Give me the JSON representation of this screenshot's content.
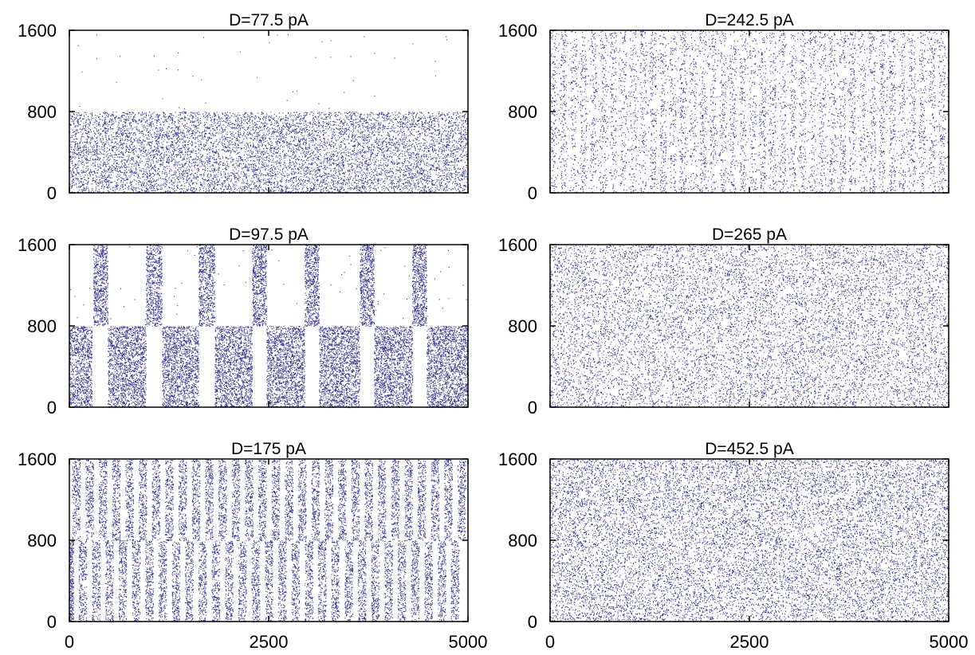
{
  "figure": {
    "point_color": "#2e2e8c",
    "axis_color": "#000000"
  },
  "chart_data": [
    {
      "type": "scatter",
      "title": "D=77.5 pA",
      "xlabel": "",
      "ylabel": "",
      "xlim": [
        0,
        5000
      ],
      "ylim": [
        0,
        1600
      ],
      "yticks": [
        "0",
        "800",
        "1600"
      ],
      "xticks": [],
      "grid": false,
      "legend": "none",
      "pattern": "lower-dense-upper-sparse"
    },
    {
      "type": "scatter",
      "title": "D=242.5 pA",
      "xlabel": "",
      "ylabel": "",
      "xlim": [
        0,
        5000
      ],
      "ylim": [
        0,
        1600
      ],
      "yticks": [
        "0",
        "800",
        "1600"
      ],
      "xticks": [],
      "grid": false,
      "legend": "none",
      "pattern": "weak-vertical-stripes"
    },
    {
      "type": "scatter",
      "title": "D=97.5 pA",
      "xlabel": "",
      "ylabel": "",
      "xlim": [
        0,
        5000
      ],
      "ylim": [
        0,
        1600
      ],
      "yticks": [
        "0",
        "800",
        "1600"
      ],
      "xticks": [],
      "grid": false,
      "legend": "none",
      "pattern": "alternating-bursts",
      "upper_bursts_x": [
        [
          300,
          480
        ],
        [
          960,
          1160
        ],
        [
          1620,
          1820
        ],
        [
          2290,
          2470
        ],
        [
          2950,
          3130
        ],
        [
          3640,
          3820
        ],
        [
          4300,
          4480
        ]
      ],
      "lower_bursts_x": [
        [
          0,
          280
        ],
        [
          480,
          960
        ],
        [
          1160,
          1620
        ],
        [
          1820,
          2290
        ],
        [
          2470,
          2950
        ],
        [
          3130,
          3640
        ],
        [
          3820,
          4300
        ],
        [
          4480,
          5000
        ]
      ]
    },
    {
      "type": "scatter",
      "title": "D=265 pA",
      "xlabel": "",
      "ylabel": "",
      "xlim": [
        0,
        5000
      ],
      "ylim": [
        0,
        1600
      ],
      "yticks": [
        "0",
        "800",
        "1600"
      ],
      "xticks": [],
      "grid": false,
      "legend": "none",
      "pattern": "uniform"
    },
    {
      "type": "scatter",
      "title": "D=175 pA",
      "xlabel": "",
      "ylabel": "",
      "xlim": [
        0,
        5000
      ],
      "ylim": [
        0,
        1600
      ],
      "yticks": [
        "0",
        "800",
        "1600"
      ],
      "xticks": [
        "0",
        "2500",
        "5000"
      ],
      "grid": false,
      "legend": "none",
      "pattern": "strong-vertical-stripes",
      "stripe_period": 166.7
    },
    {
      "type": "scatter",
      "title": "D=452.5 pA",
      "xlabel": "",
      "ylabel": "",
      "xlim": [
        0,
        5000
      ],
      "ylim": [
        0,
        1600
      ],
      "yticks": [
        "0",
        "800",
        "1600"
      ],
      "xticks": [
        "0",
        "2500",
        "5000"
      ],
      "grid": false,
      "legend": "none",
      "pattern": "uniform-dense"
    }
  ]
}
